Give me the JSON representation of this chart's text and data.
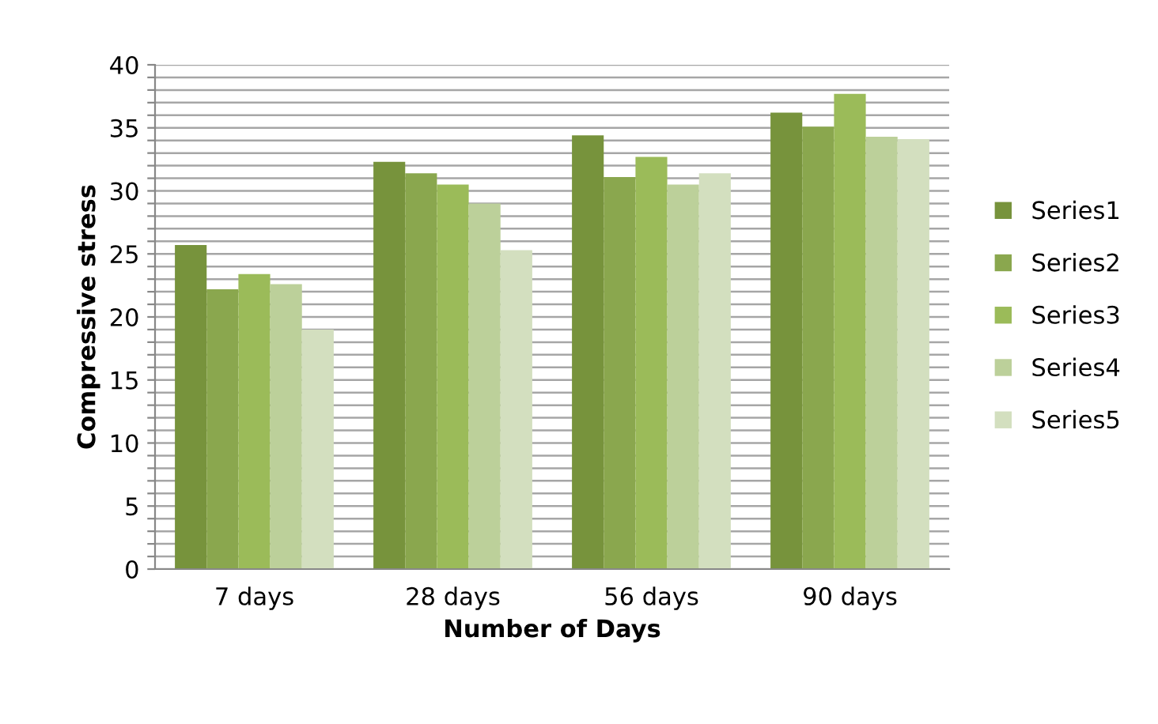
{
  "chart_data": {
    "type": "bar",
    "xlabel": "Number of Days",
    "ylabel": "Compressive stress",
    "categories": [
      "7 days",
      "28 days",
      "56 days",
      "90 days"
    ],
    "series": [
      {
        "name": "Series1",
        "color": "#77933c",
        "values": [
          25.7,
          32.3,
          34.4,
          36.2
        ]
      },
      {
        "name": "Series2",
        "color": "#8aa74e",
        "values": [
          22.2,
          31.4,
          31.1,
          35.1
        ]
      },
      {
        "name": "Series3",
        "color": "#9bbb59",
        "values": [
          23.4,
          30.5,
          32.7,
          37.7
        ]
      },
      {
        "name": "Series4",
        "color": "#bcd09a",
        "values": [
          22.6,
          29.0,
          30.5,
          34.3
        ]
      },
      {
        "name": "Series5",
        "color": "#d3dfbf",
        "values": [
          19.0,
          25.3,
          31.4,
          34.1
        ]
      }
    ],
    "ylim": [
      0,
      40
    ],
    "yticks": [
      0,
      {
        "value": 1,
        "label": null
      },
      {
        "value": 2,
        "label": null
      },
      {
        "value": 3,
        "label": null
      },
      {
        "value": 4,
        "label": null
      },
      5,
      {
        "value": 6,
        "label": null
      },
      {
        "value": 7,
        "label": null
      },
      {
        "value": 8,
        "label": null
      },
      {
        "value": 9,
        "label": null
      },
      10,
      {
        "value": 11,
        "label": null
      },
      {
        "value": 12,
        "label": null
      },
      {
        "value": 13,
        "label": null
      },
      {
        "value": 14,
        "label": null
      },
      15,
      {
        "value": 16,
        "label": null
      },
      {
        "value": 17,
        "label": null
      },
      {
        "value": 18,
        "label": null
      },
      {
        "value": 19,
        "label": null
      },
      20,
      {
        "value": 21,
        "label": null
      },
      {
        "value": 22,
        "label": null
      },
      {
        "value": 23,
        "label": null
      },
      {
        "value": 24,
        "label": null
      },
      25,
      {
        "value": 26,
        "label": null
      },
      {
        "value": 27,
        "label": null
      },
      {
        "value": 28,
        "label": null
      },
      {
        "value": 29,
        "label": null
      },
      30,
      {
        "value": 31,
        "label": null
      },
      {
        "value": 32,
        "label": null
      },
      {
        "value": 33,
        "label": null
      },
      {
        "value": 34,
        "label": null
      },
      35,
      {
        "value": 36,
        "label": null
      },
      {
        "value": 37,
        "label": null
      },
      {
        "value": 38,
        "label": null
      },
      {
        "value": 39,
        "label": null
      },
      40
    ],
    "grid": "y",
    "legend": "right"
  }
}
